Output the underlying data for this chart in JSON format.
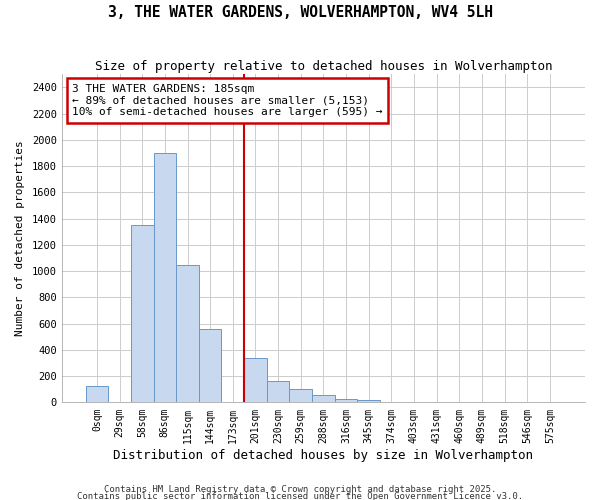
{
  "title": "3, THE WATER GARDENS, WOLVERHAMPTON, WV4 5LH",
  "subtitle": "Size of property relative to detached houses in Wolverhampton",
  "xlabel": "Distribution of detached houses by size in Wolverhampton",
  "ylabel": "Number of detached properties",
  "bar_color": "#c8d8ee",
  "bar_edge_color": "#6699cc",
  "background_color": "#ffffff",
  "plot_bg_color": "#ffffff",
  "grid_color": "#cccccc",
  "annotation_box_color": "#cc0000",
  "vline_color": "#cc0000",
  "annotation_title": "3 THE WATER GARDENS: 185sqm",
  "annotation_line1": "← 89% of detached houses are smaller (5,153)",
  "annotation_line2": "10% of semi-detached houses are larger (595) →",
  "footer1": "Contains HM Land Registry data © Crown copyright and database right 2025.",
  "footer2": "Contains public sector information licensed under the Open Government Licence v3.0.",
  "categories": [
    "0sqm",
    "29sqm",
    "58sqm",
    "86sqm",
    "115sqm",
    "144sqm",
    "173sqm",
    "201sqm",
    "230sqm",
    "259sqm",
    "288sqm",
    "316sqm",
    "345sqm",
    "374sqm",
    "403sqm",
    "431sqm",
    "460sqm",
    "489sqm",
    "518sqm",
    "546sqm",
    "575sqm"
  ],
  "values": [
    125,
    0,
    1350,
    1900,
    1050,
    560,
    0,
    340,
    165,
    105,
    60,
    30,
    15,
    0,
    0,
    0,
    0,
    0,
    0,
    0,
    0
  ],
  "vline_x": 6.5,
  "ylim": [
    0,
    2500
  ],
  "yticks": [
    0,
    200,
    400,
    600,
    800,
    1000,
    1200,
    1400,
    1600,
    1800,
    2000,
    2200,
    2400
  ]
}
